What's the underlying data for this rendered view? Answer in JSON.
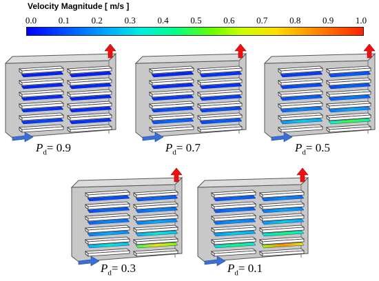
{
  "colorbar": {
    "title": "Velocity Magnitude [ m/s ]",
    "ticks": [
      "0.0",
      "0.1",
      "0.2",
      "0.3",
      "0.4",
      "0.5",
      "0.6",
      "0.7",
      "0.8",
      "0.9",
      "1.0"
    ],
    "colors": [
      "#0000ff",
      "#00aaff",
      "#00ff88",
      "#ccff00",
      "#ff8800",
      "#ff2200"
    ]
  },
  "panels": [
    {
      "label_p": "P",
      "label_sub": "d",
      "label_value": "= 0.9",
      "p_d": 0.9,
      "shelf_velocities": [
        [
          0.05,
          0.05
        ],
        [
          0.06,
          0.06
        ],
        [
          0.07,
          0.06
        ],
        [
          0.08,
          0.07
        ],
        [
          0.1,
          0.08
        ]
      ]
    },
    {
      "label_p": "P",
      "label_sub": "d",
      "label_value": "= 0.7",
      "p_d": 0.7,
      "shelf_velocities": [
        [
          0.06,
          0.08
        ],
        [
          0.07,
          0.08
        ],
        [
          0.09,
          0.1
        ],
        [
          0.12,
          0.12
        ],
        [
          0.16,
          0.14
        ]
      ]
    },
    {
      "label_p": "P",
      "label_sub": "d",
      "label_value": "= 0.5",
      "p_d": 0.5,
      "shelf_velocities": [
        [
          0.1,
          0.14
        ],
        [
          0.12,
          0.14
        ],
        [
          0.15,
          0.18
        ],
        [
          0.2,
          0.24
        ],
        [
          0.3,
          0.5
        ]
      ]
    },
    {
      "label_p": "P",
      "label_sub": "d",
      "label_value": "= 0.3",
      "p_d": 0.3,
      "shelf_velocities": [
        [
          0.12,
          0.16
        ],
        [
          0.15,
          0.2
        ],
        [
          0.2,
          0.25
        ],
        [
          0.25,
          0.35
        ],
        [
          0.35,
          0.7
        ]
      ]
    },
    {
      "label_p": "P",
      "label_sub": "d",
      "label_value": "= 0.1",
      "p_d": 0.1,
      "shelf_velocities": [
        [
          0.15,
          0.2
        ],
        [
          0.18,
          0.24
        ],
        [
          0.22,
          0.3
        ],
        [
          0.3,
          0.45
        ],
        [
          0.45,
          0.85
        ]
      ]
    }
  ],
  "arrows": {
    "inlet_color": "#3a6fd8",
    "outlet_color": "#ee1111"
  }
}
